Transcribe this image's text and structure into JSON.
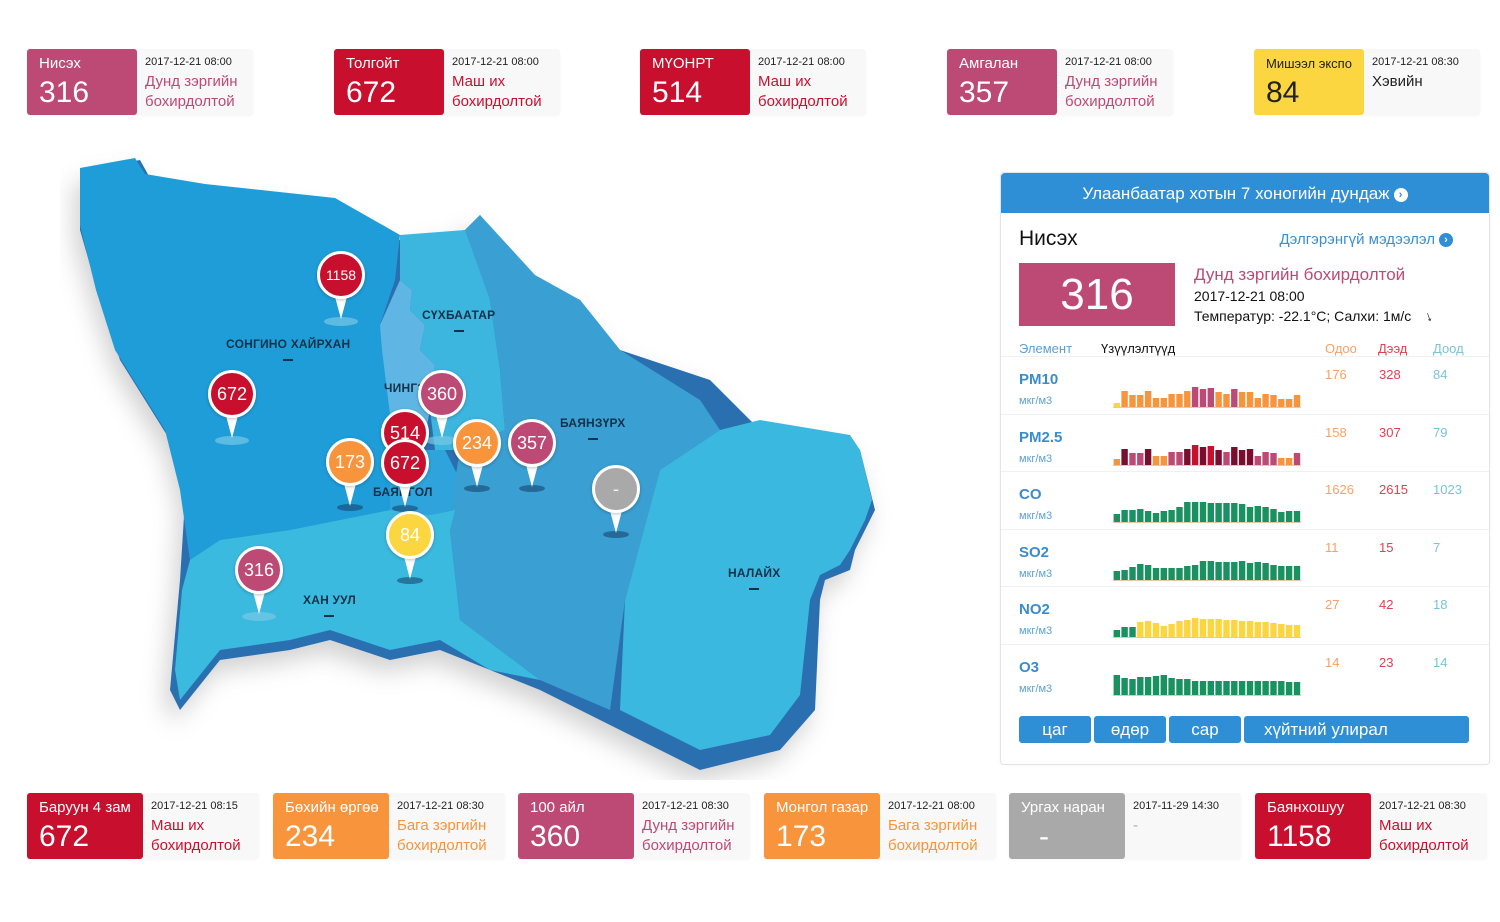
{
  "colors": {
    "very_high": "#c8102e",
    "moderate": "#bd4a74",
    "low": "#f7943c",
    "good": "#fbd640",
    "nodata": "#a9a9a9",
    "panel_blue": "#2f8fd6"
  },
  "top_cards": [
    {
      "name": "Нисэх",
      "value": "316",
      "time": "2017-12-21 08:00",
      "status": "Дунд зэргийн бохирдолтой",
      "level": "moderate"
    },
    {
      "name": "Толгойт",
      "value": "672",
      "time": "2017-12-21 08:00",
      "status": "Маш их бохирдолтой",
      "level": "very_high"
    },
    {
      "name": "МҮОНРТ",
      "value": "514",
      "time": "2017-12-21 08:00",
      "status": "Маш их бохирдолтой",
      "level": "very_high"
    },
    {
      "name": "Амгалан",
      "value": "357",
      "time": "2017-12-21 08:00",
      "status": "Дунд зэргийн бохирдолтой",
      "level": "moderate"
    },
    {
      "name": "Мишээл экспо",
      "value": "84",
      "time": "2017-12-21 08:30",
      "status": "Хэвийн",
      "level": "good"
    }
  ],
  "bottom_cards": [
    {
      "name": "Баруун 4 зам",
      "value": "672",
      "time": "2017-12-21 08:15",
      "status": "Маш их бохирдолтой",
      "level": "very_high"
    },
    {
      "name": "Бөхийн өргөө",
      "value": "234",
      "time": "2017-12-21 08:30",
      "status": "Бага зэргийн бохирдолтой",
      "level": "low"
    },
    {
      "name": "100 айл",
      "value": "360",
      "time": "2017-12-21 08:30",
      "status": "Дунд зэргийн бохирдолтой",
      "level": "moderate"
    },
    {
      "name": "Монгол газар",
      "value": "173",
      "time": "2017-12-21 08:00",
      "status": "Бага зэргийн бохирдолтой",
      "level": "low"
    },
    {
      "name": "Ургах наран",
      "value": "-",
      "time": "2017-11-29 14:30",
      "status": "-",
      "level": "nodata"
    },
    {
      "name": "Баянхошуу",
      "value": "1158",
      "time": "2017-12-21 08:30",
      "status": "Маш их бохирдолтой",
      "level": "very_high"
    }
  ],
  "map": {
    "districts": [
      "СОНГИНО ХАЙРХАН",
      "СҮХБААТАР",
      "ЧИНГЭЛТЭЙ",
      "БАЯНЗҮРХ",
      "БАЯНГОЛ",
      "ХАН УУЛ",
      "НАЛАЙХ"
    ],
    "district_labels": {
      "songino": "СОНГИНО ХАЙРХАН",
      "sukhbaatar": "СҮХБААТАР",
      "chingeltei": "ЧИНГЭ",
      "bayanzurkh": "БАЯНЗҮРХ",
      "bayangol": "БАЯНГОЛ",
      "khanuul": "ХАН УУЛ",
      "nalaikh": "НАЛАЙХ"
    },
    "pins": [
      {
        "value": "1158",
        "level": "very_high"
      },
      {
        "value": "672",
        "level": "very_high"
      },
      {
        "value": "360",
        "level": "moderate"
      },
      {
        "value": "514",
        "level": "very_high"
      },
      {
        "value": "672",
        "level": "very_high"
      },
      {
        "value": "173",
        "level": "low"
      },
      {
        "value": "234",
        "level": "low"
      },
      {
        "value": "357",
        "level": "moderate"
      },
      {
        "value": "-",
        "level": "nodata"
      },
      {
        "value": "84",
        "level": "good"
      },
      {
        "value": "316",
        "level": "moderate"
      }
    ]
  },
  "panel": {
    "header": "Улаанбаатар хотын 7 хоногийн дундаж",
    "header_icon": "chevron-circle-right-icon",
    "station": "Нисэх",
    "more_link": "Дэлгэрэнгүй мэдээлэл",
    "aqi": "316",
    "status": "Дунд зэргийн бохирдолтой",
    "time": "2017-12-21 08:00",
    "weather": "Температур: -22.1°C; Салхи: 1м/с",
    "wind_icon": "wind-direction-arrow-icon",
    "columns": {
      "element": "Элемент",
      "indicators": "Үзүүлэлтүүд",
      "now": "Одоо",
      "max": "Дээд",
      "min": "Доод"
    },
    "pollutants": [
      {
        "name": "PM10",
        "unit": "мкг/м3",
        "now": "176",
        "max": "328",
        "min": "84",
        "bars": [
          0.2,
          0.8,
          0.6,
          0.6,
          0.8,
          0.45,
          0.45,
          0.65,
          0.65,
          0.8,
          1.0,
          0.9,
          0.95,
          0.75,
          0.65,
          0.9,
          0.75,
          0.75,
          0.45,
          0.65,
          0.6,
          0.4,
          0.4,
          0.6
        ],
        "bar_levels": [
          "good",
          "low",
          "low",
          "low",
          "low",
          "low",
          "low",
          "low",
          "low",
          "low",
          "moderate",
          "moderate",
          "moderate",
          "low",
          "low",
          "moderate",
          "low",
          "low",
          "low",
          "low",
          "low",
          "low",
          "low",
          "low"
        ]
      },
      {
        "name": "PM2.5",
        "unit": "мкг/м3",
        "now": "158",
        "max": "307",
        "min": "79",
        "bars": [
          0.3,
          0.8,
          0.6,
          0.6,
          0.8,
          0.45,
          0.45,
          0.65,
          0.65,
          0.8,
          1.0,
          0.9,
          0.95,
          0.75,
          0.65,
          0.9,
          0.75,
          0.8,
          0.45,
          0.65,
          0.6,
          0.35,
          0.35,
          0.6
        ],
        "bar_levels": [
          "low",
          "dark",
          "moderate",
          "moderate",
          "dark",
          "low",
          "low",
          "moderate",
          "moderate",
          "dark",
          "very_high",
          "dark",
          "very_high",
          "dark",
          "moderate",
          "dark",
          "dark",
          "dark",
          "moderate",
          "moderate",
          "moderate",
          "low",
          "low",
          "moderate"
        ]
      },
      {
        "name": "CO",
        "unit": "мкг/м3",
        "now": "1626",
        "max": "2615",
        "min": "1023",
        "bars": [
          0.4,
          0.6,
          0.6,
          0.65,
          0.55,
          0.45,
          0.55,
          0.6,
          0.75,
          1.0,
          1.0,
          1.0,
          0.95,
          0.95,
          0.95,
          0.95,
          0.9,
          0.75,
          0.8,
          0.75,
          0.65,
          0.5,
          0.55,
          0.55
        ],
        "bar_levels": [
          "green",
          "green",
          "green",
          "green",
          "green",
          "green",
          "green",
          "green",
          "green",
          "green",
          "green",
          "green",
          "green",
          "green",
          "green",
          "green",
          "green",
          "green",
          "green",
          "green",
          "green",
          "green",
          "green",
          "green"
        ]
      },
      {
        "name": "SO2",
        "unit": "мкг/м3",
        "now": "11",
        "max": "15",
        "min": "7",
        "bars": [
          0.45,
          0.5,
          0.65,
          0.8,
          0.75,
          0.6,
          0.6,
          0.6,
          0.6,
          0.7,
          0.75,
          0.95,
          0.95,
          0.9,
          0.9,
          0.9,
          0.95,
          0.85,
          0.9,
          0.85,
          0.75,
          0.7,
          0.7,
          0.7
        ],
        "bar_levels": [
          "green",
          "green",
          "green",
          "green",
          "green",
          "green",
          "green",
          "green",
          "green",
          "green",
          "green",
          "green",
          "green",
          "green",
          "green",
          "green",
          "green",
          "green",
          "green",
          "green",
          "green",
          "green",
          "green",
          "green"
        ]
      },
      {
        "name": "NO2",
        "unit": "мкг/м3",
        "now": "27",
        "max": "42",
        "min": "18",
        "bars": [
          0.35,
          0.5,
          0.5,
          0.75,
          0.8,
          0.7,
          0.55,
          0.65,
          0.8,
          0.85,
          0.95,
          0.9,
          0.9,
          0.9,
          0.85,
          0.85,
          0.8,
          0.8,
          0.75,
          0.75,
          0.7,
          0.65,
          0.6,
          0.6
        ],
        "bar_levels": [
          "green",
          "green",
          "green",
          "good",
          "good",
          "good",
          "good",
          "good",
          "good",
          "good",
          "good",
          "good",
          "good",
          "good",
          "good",
          "good",
          "good",
          "good",
          "good",
          "good",
          "good",
          "good",
          "good",
          "good"
        ]
      },
      {
        "name": "O3",
        "unit": "мкг/м3",
        "now": "14",
        "max": "23",
        "min": "14",
        "bars": [
          1.0,
          0.85,
          0.8,
          0.9,
          0.9,
          0.95,
          1.0,
          0.85,
          0.8,
          0.8,
          0.7,
          0.7,
          0.7,
          0.7,
          0.7,
          0.7,
          0.7,
          0.7,
          0.7,
          0.7,
          0.7,
          0.7,
          0.65,
          0.65
        ],
        "bar_levels": [
          "green",
          "green",
          "green",
          "green",
          "green",
          "green",
          "green",
          "green",
          "green",
          "green",
          "green",
          "green",
          "green",
          "green",
          "green",
          "green",
          "green",
          "green",
          "green",
          "green",
          "green",
          "green",
          "green",
          "green"
        ]
      }
    ],
    "tabs": [
      "цаг",
      "өдөр",
      "сар",
      "хүйтний улирал"
    ]
  }
}
